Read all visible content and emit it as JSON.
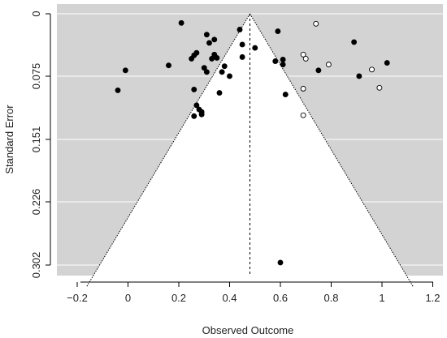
{
  "chart_data": {
    "type": "scatter",
    "subtype": "funnel-plot",
    "title": "",
    "xlabel": "Observed Outcome",
    "ylabel": "Standard Error",
    "xlim": [
      -0.28,
      1.24
    ],
    "ylim": [
      0,
      0.302
    ],
    "y_reversed": true,
    "x_ticks": [
      {
        "value": -0.2,
        "label": "−0.2"
      },
      {
        "value": 0,
        "label": "0"
      },
      {
        "value": 0.2,
        "label": "0.2"
      },
      {
        "value": 0.4,
        "label": "0.4"
      },
      {
        "value": 0.6,
        "label": "0.6"
      },
      {
        "value": 0.8,
        "label": "0.8"
      },
      {
        "value": 1,
        "label": "1"
      },
      {
        "value": 1.2,
        "label": "1.2"
      }
    ],
    "y_ticks": [
      {
        "value": 0,
        "label": "0"
      },
      {
        "value": 0.075,
        "label": "0.075"
      },
      {
        "value": 0.151,
        "label": "0.151"
      },
      {
        "value": 0.226,
        "label": "0.226"
      },
      {
        "value": 0.302,
        "label": "0.302"
      }
    ],
    "summary_estimate": 0.48,
    "funnel_z": 1.96,
    "colors": {
      "panel_background": "#d3d3d3",
      "funnel_fill": "#ffffff",
      "gridline": "#ffffff",
      "filled_point": "#000000",
      "open_point_fill": "#ffffff",
      "open_point_stroke": "#000000"
    },
    "series": [
      {
        "marker": "filled",
        "points": [
          {
            "x": -0.04,
            "y": 0.092
          },
          {
            "x": -0.01,
            "y": 0.068
          },
          {
            "x": 0.16,
            "y": 0.062
          },
          {
            "x": 0.21,
            "y": 0.011
          },
          {
            "x": 0.25,
            "y": 0.054
          },
          {
            "x": 0.26,
            "y": 0.05
          },
          {
            "x": 0.27,
            "y": 0.047
          },
          {
            "x": 0.26,
            "y": 0.091
          },
          {
            "x": 0.27,
            "y": 0.11
          },
          {
            "x": 0.28,
            "y": 0.115
          },
          {
            "x": 0.26,
            "y": 0.123
          },
          {
            "x": 0.29,
            "y": 0.118
          },
          {
            "x": 0.29,
            "y": 0.121
          },
          {
            "x": 0.3,
            "y": 0.065
          },
          {
            "x": 0.31,
            "y": 0.07
          },
          {
            "x": 0.31,
            "y": 0.025
          },
          {
            "x": 0.32,
            "y": 0.035
          },
          {
            "x": 0.33,
            "y": 0.054
          },
          {
            "x": 0.34,
            "y": 0.049
          },
          {
            "x": 0.34,
            "y": 0.051
          },
          {
            "x": 0.35,
            "y": 0.053
          },
          {
            "x": 0.34,
            "y": 0.031
          },
          {
            "x": 0.36,
            "y": 0.095
          },
          {
            "x": 0.37,
            "y": 0.07
          },
          {
            "x": 0.38,
            "y": 0.063
          },
          {
            "x": 0.4,
            "y": 0.075
          },
          {
            "x": 0.44,
            "y": 0.019
          },
          {
            "x": 0.45,
            "y": 0.037
          },
          {
            "x": 0.45,
            "y": 0.052
          },
          {
            "x": 0.5,
            "y": 0.041
          },
          {
            "x": 0.59,
            "y": 0.021
          },
          {
            "x": 0.58,
            "y": 0.057
          },
          {
            "x": 0.61,
            "y": 0.055
          },
          {
            "x": 0.61,
            "y": 0.061
          },
          {
            "x": 0.62,
            "y": 0.097
          },
          {
            "x": 0.6,
            "y": 0.299
          },
          {
            "x": 0.75,
            "y": 0.068
          },
          {
            "x": 0.89,
            "y": 0.034
          },
          {
            "x": 0.91,
            "y": 0.075
          },
          {
            "x": 1.02,
            "y": 0.059
          }
        ]
      },
      {
        "marker": "open",
        "points": [
          {
            "x": 0.74,
            "y": 0.012
          },
          {
            "x": 0.69,
            "y": 0.049
          },
          {
            "x": 0.7,
            "y": 0.054
          },
          {
            "x": 0.69,
            "y": 0.09
          },
          {
            "x": 0.69,
            "y": 0.122
          },
          {
            "x": 0.79,
            "y": 0.061
          },
          {
            "x": 0.96,
            "y": 0.067
          },
          {
            "x": 0.99,
            "y": 0.089
          }
        ]
      }
    ]
  }
}
